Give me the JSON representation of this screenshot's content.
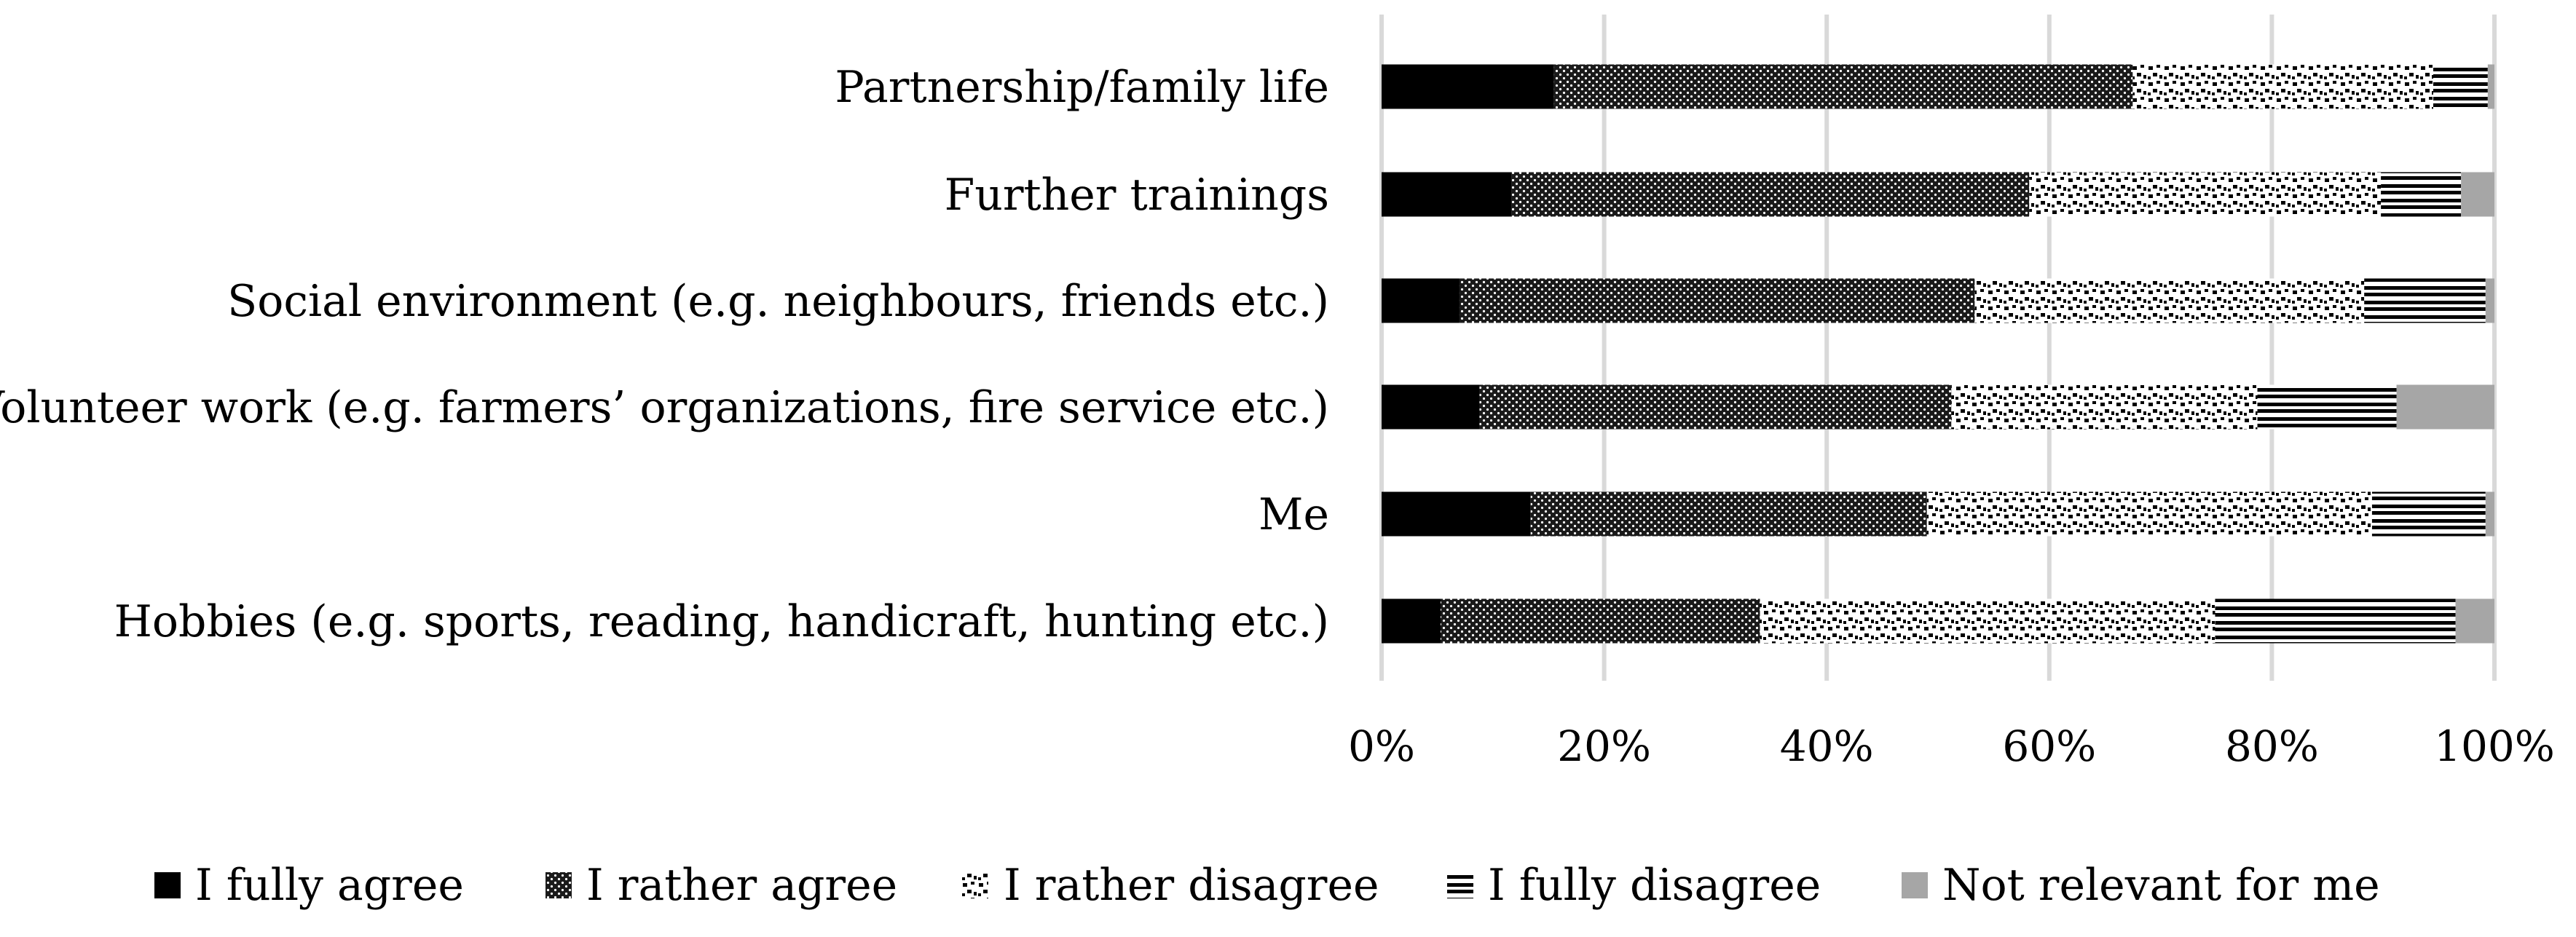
{
  "chart_data": {
    "type": "bar",
    "orientation": "horizontal",
    "stacked": "percent",
    "categories": [
      "Partnership/family life",
      "Further trainings",
      "Social environment (e.g. neighbours, friends etc.)",
      "Volunteer work (e.g. farmers’ organizations, fire service etc.)",
      "Me",
      "Hobbies (e.g. sports, reading, handicraft, hunting etc.)"
    ],
    "series": [
      {
        "name": "I fully agree",
        "values": [
          15.5,
          11.7,
          7.0,
          8.8,
          13.4,
          5.3
        ],
        "pattern": "solid",
        "color": "#000000"
      },
      {
        "name": "I rather agree",
        "values": [
          52.0,
          46.5,
          46.3,
          42.4,
          35.6,
          28.7
        ],
        "pattern": "dense-dots",
        "color": "#2b2b2b"
      },
      {
        "name": "I rather disagree",
        "values": [
          27.0,
          31.6,
          35.0,
          27.5,
          40.0,
          40.9
        ],
        "pattern": "sparse-dots",
        "color": "#ffffff"
      },
      {
        "name": "I fully disagree",
        "values": [
          4.9,
          7.2,
          10.9,
          12.5,
          10.2,
          21.6
        ],
        "pattern": "horizontal-lines",
        "color": "#ffffff"
      },
      {
        "name": "Not relevant for me",
        "values": [
          0.6,
          3.0,
          0.8,
          8.8,
          0.8,
          3.5
        ],
        "pattern": "solid",
        "color": "#a6a6a6"
      }
    ],
    "xlim": [
      0,
      100
    ],
    "xticks": [
      0,
      20,
      40,
      60,
      80,
      100
    ],
    "xtick_labels": [
      "0%",
      "20%",
      "40%",
      "60%",
      "80%",
      "100%"
    ],
    "grid": "vertical",
    "legend_position": "bottom"
  }
}
